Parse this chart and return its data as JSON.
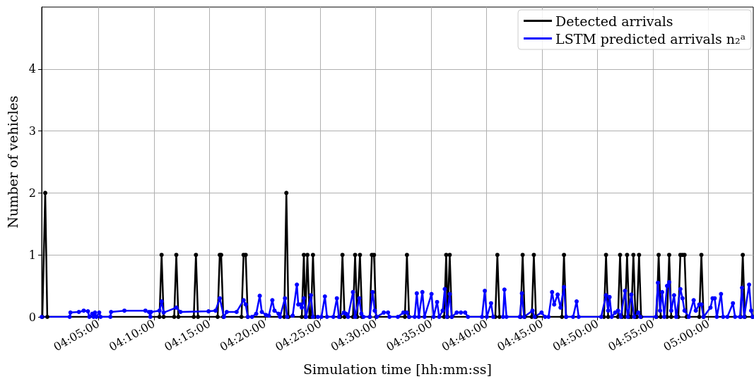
{
  "chart_data": {
    "type": "line",
    "xlabel": "Simulation time [hh:mm:ss]",
    "ylabel": "Number of vehicles",
    "xlim": [
      3.998,
      5.0674
    ],
    "ylim": [
      0,
      5
    ],
    "xticks": [
      {
        "value": 4.08333,
        "label": "04:05:00"
      },
      {
        "value": 4.16667,
        "label": "04:10:00"
      },
      {
        "value": 4.25,
        "label": "04:15:00"
      },
      {
        "value": 4.33333,
        "label": "04:20:00"
      },
      {
        "value": 4.41667,
        "label": "04:25:00"
      },
      {
        "value": 4.5,
        "label": "04:30:00"
      },
      {
        "value": 4.58333,
        "label": "04:35:00"
      },
      {
        "value": 4.66667,
        "label": "04:40:00"
      },
      {
        "value": 4.75,
        "label": "04:45:00"
      },
      {
        "value": 4.83333,
        "label": "04:50:00"
      },
      {
        "value": 4.91667,
        "label": "04:55:00"
      },
      {
        "value": 5.0,
        "label": "05:00:00"
      }
    ],
    "yticks": [
      0,
      1,
      2,
      3,
      4
    ],
    "grid": true,
    "legend": "top right",
    "marker": "circle",
    "line_style": "solid",
    "series": [
      {
        "name": "Detected arrivals",
        "color": "#000000",
        "x": [
          3.999,
          4.0033,
          4.0064,
          4.175,
          4.1782,
          4.1813,
          4.1971,
          4.2003,
          4.2034,
          4.2266,
          4.2298,
          4.2329,
          4.2624,
          4.2656,
          4.2677,
          4.2709,
          4.2983,
          4.3014,
          4.3046,
          4.3077,
          4.3625,
          4.3657,
          4.3689,
          4.3889,
          4.392,
          4.3941,
          4.3973,
          4.4005,
          4.4026,
          4.4057,
          4.4089,
          4.4468,
          4.45,
          4.4531,
          4.4658,
          4.469,
          4.4721,
          4.4763,
          4.4795,
          4.4911,
          4.4942,
          4.4974,
          4.5006,
          4.5438,
          4.5469,
          4.5501,
          4.6028,
          4.6059,
          4.608,
          4.6112,
          4.6143,
          4.6797,
          4.6828,
          4.686,
          4.7176,
          4.7208,
          4.7239,
          4.7345,
          4.7376,
          4.7408,
          4.7798,
          4.7829,
          4.7861,
          4.843,
          4.8461,
          4.8493,
          4.8641,
          4.8672,
          4.8704,
          4.8746,
          4.8777,
          4.8809,
          4.8841,
          4.8872,
          4.8904,
          4.8925,
          4.8957,
          4.8988,
          4.922,
          4.9252,
          4.9283,
          4.9378,
          4.941,
          4.9441,
          4.9547,
          4.9578,
          4.961,
          4.9641,
          4.9673,
          4.9863,
          4.9894,
          4.9926,
          5.0484,
          5.0516,
          5.0548,
          5.0663
        ],
        "values": [
          0,
          2,
          0,
          0,
          1,
          0,
          0,
          1,
          0,
          0,
          1,
          0,
          0,
          1,
          1,
          0,
          0,
          1,
          1,
          0,
          0,
          2,
          0,
          0,
          1,
          0,
          1,
          0,
          0,
          1,
          0,
          0,
          1,
          0,
          0,
          1,
          0,
          1,
          0,
          0,
          1,
          1,
          0,
          0,
          1,
          0,
          0,
          1,
          0,
          1,
          0,
          0,
          1,
          0,
          0,
          1,
          0,
          0,
          1,
          0,
          0,
          1,
          0,
          0,
          1,
          0,
          0,
          1,
          0,
          0,
          1,
          0,
          0,
          1,
          0,
          0,
          1,
          0,
          0,
          1,
          0,
          0,
          1,
          0,
          0,
          1,
          1,
          1,
          0,
          0,
          1,
          0,
          0,
          1,
          0,
          0
        ]
      },
      {
        "name": "LSTM predicted arrivals n₂ᵃ",
        "color": "#0000ff",
        "x": [
          3.998,
          4.0401,
          4.0412,
          4.0538,
          4.0612,
          4.0675,
          4.0696,
          4.0739,
          4.076,
          4.0781,
          4.0802,
          4.0844,
          4.0865,
          4.1012,
          4.1023,
          4.1223,
          4.1539,
          4.1592,
          4.1613,
          4.1624,
          4.175,
          4.1782,
          4.1813,
          4.2003,
          4.2066,
          4.2487,
          4.2593,
          4.2656,
          4.2719,
          4.2761,
          4.2909,
          4.3014,
          4.3046,
          4.3077,
          4.3141,
          4.3204,
          4.3257,
          4.3288,
          4.3351,
          4.3394,
          4.3446,
          4.3478,
          4.3541,
          4.3562,
          4.3636,
          4.3668,
          4.3752,
          4.3815,
          4.3836,
          4.3868,
          4.3889,
          4.392,
          4.3952,
          4.4026,
          4.4057,
          4.4131,
          4.4184,
          4.4236,
          4.4268,
          4.4363,
          4.4416,
          4.4447,
          4.4521,
          4.4553,
          4.4584,
          4.4658,
          4.469,
          4.4753,
          4.4784,
          4.4816,
          4.4911,
          4.4953,
          4.4985,
          4.5016,
          4.5121,
          4.5185,
          4.5206,
          4.5332,
          4.5416,
          4.5469,
          4.5501,
          4.5585,
          4.5617,
          4.5648,
          4.5701,
          4.5733,
          4.5838,
          4.587,
          4.5922,
          4.5954,
          4.6006,
          4.6038,
          4.607,
          4.6112,
          4.6143,
          4.6217,
          4.628,
          4.6344,
          4.6386,
          4.6597,
          4.6639,
          4.667,
          4.6733,
          4.6765,
          4.6913,
          4.6934,
          4.6965,
          4.7165,
          4.7197,
          4.7229,
          4.7355,
          4.7387,
          4.7492,
          4.7545,
          4.7597,
          4.765,
          4.7682,
          4.7734,
          4.7777,
          4.7829,
          4.7861,
          4.7966,
          4.8019,
          4.805,
          4.8388,
          4.8461,
          4.8493,
          4.8514,
          4.8546,
          4.8598,
          4.8641,
          4.8683,
          4.8746,
          4.8788,
          4.8841,
          4.8883,
          4.8946,
          4.8978,
          4.9209,
          4.9241,
          4.9273,
          4.9304,
          4.9336,
          4.9378,
          4.941,
          4.9441,
          4.9483,
          4.9515,
          4.9578,
          4.961,
          4.9641,
          4.9705,
          4.9778,
          4.981,
          4.9863,
          4.9894,
          4.9926,
          5.0031,
          5.0063,
          5.0094,
          5.0126,
          5.0189,
          5.0221,
          5.0284,
          5.0368,
          5.04,
          5.0474,
          5.0505,
          5.0537,
          5.0611,
          5.0642,
          5.0663
        ],
        "values": [
          0,
          0,
          0.07,
          0.08,
          0.1,
          0.09,
          0,
          0.05,
          0,
          0.07,
          0,
          0.07,
          0,
          0,
          0.08,
          0.1,
          0.1,
          0.08,
          0,
          0.08,
          0.1,
          0.25,
          0.07,
          0.15,
          0.08,
          0.09,
          0.1,
          0.3,
          0,
          0.08,
          0.08,
          0.27,
          0.2,
          0,
          0,
          0.05,
          0.34,
          0.08,
          0.03,
          0.02,
          0.27,
          0.1,
          0.05,
          0,
          0.3,
          0,
          0.02,
          0.52,
          0.2,
          0.2,
          0.15,
          0.3,
          0,
          0.35,
          0,
          0,
          0,
          0.33,
          0,
          0,
          0.3,
          0,
          0.07,
          0.05,
          0,
          0.4,
          0,
          0.3,
          0.05,
          0,
          0,
          0.4,
          0.1,
          0,
          0.07,
          0.07,
          0,
          0,
          0.07,
          0.07,
          0,
          0,
          0.38,
          0,
          0.4,
          0,
          0.37,
          0,
          0.24,
          0,
          0.1,
          0.45,
          0,
          0.37,
          0,
          0.07,
          0.07,
          0.07,
          0,
          0,
          0.42,
          0,
          0.22,
          0,
          0,
          0.44,
          0,
          0,
          0.38,
          0,
          0.1,
          0,
          0.07,
          0,
          0,
          0.4,
          0.2,
          0.36,
          0.15,
          0.48,
          0,
          0,
          0.25,
          0,
          0,
          0.35,
          0.1,
          0.32,
          0,
          0.07,
          0.1,
          0,
          0.42,
          0,
          0.36,
          0,
          0.07,
          0,
          0,
          0.55,
          0.1,
          0.4,
          0,
          0.5,
          0.56,
          0.1,
          0.35,
          0,
          0.45,
          0.3,
          0.1,
          0,
          0.27,
          0.1,
          0.2,
          0.2,
          0,
          0.15,
          0.3,
          0.3,
          0,
          0.37,
          0,
          0,
          0.22,
          0,
          0,
          0.47,
          0,
          0.52,
          0.1,
          0
        ]
      }
    ]
  }
}
